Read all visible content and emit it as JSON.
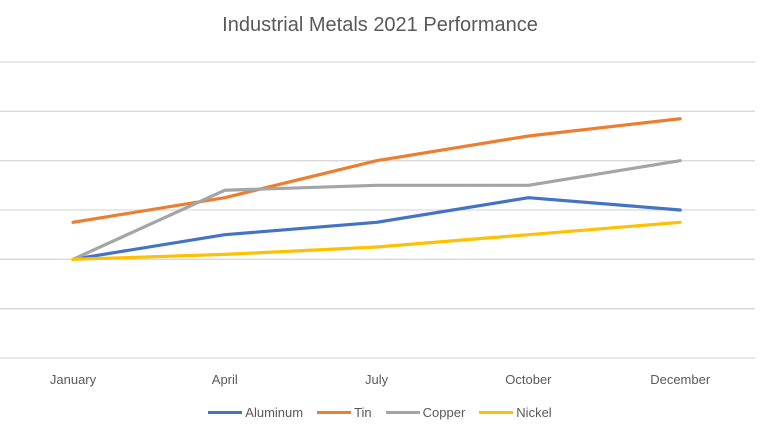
{
  "chart_data": {
    "type": "line",
    "title": "Industrial Metals 2021 Performance",
    "xlabel": "",
    "ylabel": "",
    "categories": [
      "January",
      "April",
      "July",
      "October",
      "December"
    ],
    "ylim": [
      0,
      6
    ],
    "y_tick_labels_shown": false,
    "grid": true,
    "legend_position": "bottom",
    "series": [
      {
        "name": "Aluminum",
        "color": "#4472C4",
        "values": [
          2,
          2.5,
          2.75,
          3.25,
          3.0
        ]
      },
      {
        "name": "Tin",
        "color": "#ED7D31",
        "values": [
          2.75,
          3.25,
          4,
          4.5,
          4.85
        ]
      },
      {
        "name": "Copper",
        "color": "#A5A5A5",
        "values": [
          2,
          3.4,
          3.5,
          3.5,
          4
        ]
      },
      {
        "name": "Nickel",
        "color": "#FFC000",
        "values": [
          2,
          2.1,
          2.25,
          2.5,
          2.75
        ]
      }
    ]
  }
}
